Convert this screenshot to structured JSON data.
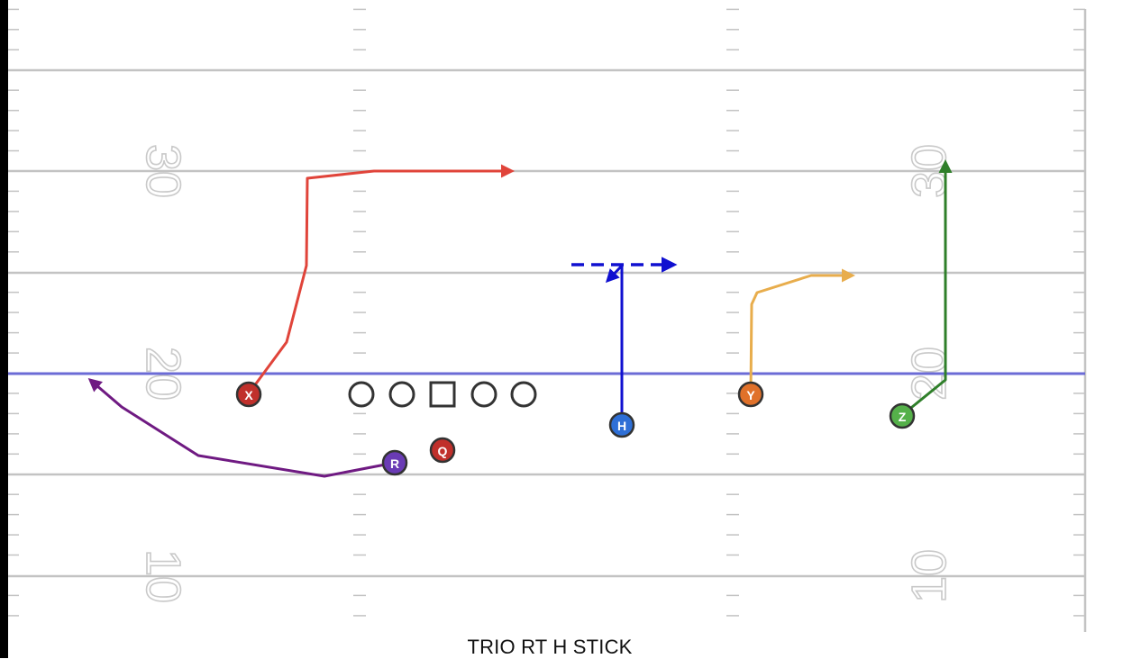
{
  "play_name": "TRIO RT H STICK",
  "yard_numbers": {
    "left": [
      "30",
      "20",
      "10"
    ],
    "right": [
      "30",
      "20",
      "10"
    ]
  },
  "colors": {
    "field_line": "#c3c3c3",
    "line_of_scrimmage": "#6b6bd6",
    "lineman_stroke": "#333333"
  },
  "players": [
    {
      "id": "X",
      "label": "X",
      "color": "#c0302b",
      "route_color": "#e0443a"
    },
    {
      "id": "R",
      "label": "R",
      "color": "#6a3bb5",
      "route_color": "#6f1a82"
    },
    {
      "id": "Q",
      "label": "Q",
      "color": "#c0302b",
      "route_color": null
    },
    {
      "id": "H",
      "label": "H",
      "color": "#2e6fd6",
      "route_color": "#1010d0"
    },
    {
      "id": "Y",
      "label": "Y",
      "color": "#e0712a",
      "route_color": "#e8ad4c"
    },
    {
      "id": "Z",
      "label": "Z",
      "color": "#55b04a",
      "route_color": "#2f7f2a"
    }
  ],
  "linemen": [
    "tackle-left",
    "guard-left",
    "center",
    "guard-right",
    "tackle-right"
  ]
}
